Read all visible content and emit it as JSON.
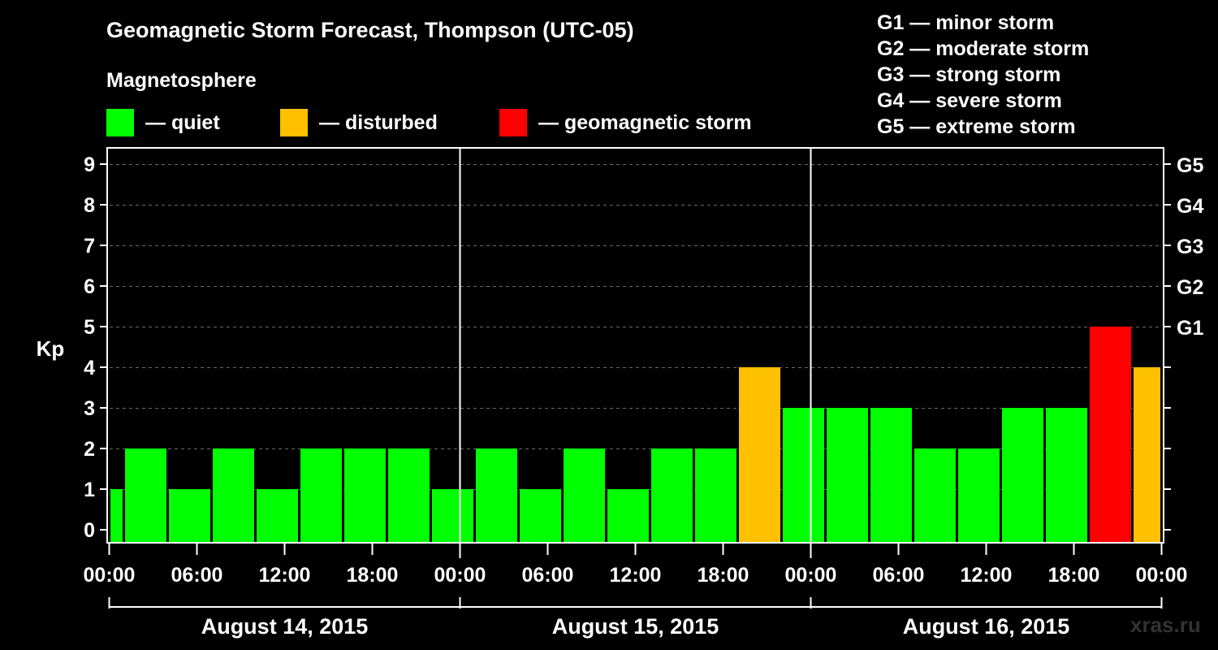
{
  "title": "Geomagnetic Storm Forecast, Thompson (UTC-05)",
  "section_label": "Magnetosphere",
  "legend": [
    {
      "label": "— quiet",
      "color": "#00ff00"
    },
    {
      "label": "— disturbed",
      "color": "#ffc000"
    },
    {
      "label": "— geomagnetic storm",
      "color": "#ff0000"
    }
  ],
  "storm_scale": [
    "G1 — minor storm",
    "G2 — moderate storm",
    "G3 — strong storm",
    "G4 — severe storm",
    "G5 — extreme storm"
  ],
  "watermark": "xras.ru",
  "chart_data": {
    "type": "bar",
    "title": "Geomagnetic Storm Forecast, Thompson (UTC-05)",
    "ylabel": "Kp",
    "ylim": [
      0,
      9
    ],
    "yticks": [
      "0",
      "1",
      "2",
      "3",
      "4",
      "5",
      "6",
      "7",
      "8",
      "9"
    ],
    "right_axis": [
      {
        "kp": 5,
        "label": "G1"
      },
      {
        "kp": 6,
        "label": "G2"
      },
      {
        "kp": 7,
        "label": "G3"
      },
      {
        "kp": 8,
        "label": "G4"
      },
      {
        "kp": 9,
        "label": "G5"
      }
    ],
    "xlim_hours": [
      0,
      72
    ],
    "xticks": [
      {
        "h": 0,
        "label": "00:00"
      },
      {
        "h": 6,
        "label": "06:00"
      },
      {
        "h": 12,
        "label": "12:00"
      },
      {
        "h": 18,
        "label": "18:00"
      },
      {
        "h": 24,
        "label": "00:00"
      },
      {
        "h": 30,
        "label": "06:00"
      },
      {
        "h": 36,
        "label": "12:00"
      },
      {
        "h": 42,
        "label": "18:00"
      },
      {
        "h": 48,
        "label": "00:00"
      },
      {
        "h": 54,
        "label": "06:00"
      },
      {
        "h": 60,
        "label": "12:00"
      },
      {
        "h": 66,
        "label": "18:00"
      },
      {
        "h": 72,
        "label": "00:00"
      }
    ],
    "days": [
      {
        "label": "August 14, 2015",
        "start": 0,
        "end": 24
      },
      {
        "label": "August 15, 2015",
        "start": 24,
        "end": 48
      },
      {
        "label": "August 16, 2015",
        "start": 48,
        "end": 72
      }
    ],
    "bars": [
      {
        "start": 0,
        "end": 1,
        "kp": 1,
        "status": "quiet"
      },
      {
        "start": 1,
        "end": 4,
        "kp": 2,
        "status": "quiet"
      },
      {
        "start": 4,
        "end": 7,
        "kp": 1,
        "status": "quiet"
      },
      {
        "start": 7,
        "end": 10,
        "kp": 2,
        "status": "quiet"
      },
      {
        "start": 10,
        "end": 13,
        "kp": 1,
        "status": "quiet"
      },
      {
        "start": 13,
        "end": 16,
        "kp": 2,
        "status": "quiet"
      },
      {
        "start": 16,
        "end": 19,
        "kp": 2,
        "status": "quiet"
      },
      {
        "start": 19,
        "end": 22,
        "kp": 2,
        "status": "quiet"
      },
      {
        "start": 22,
        "end": 25,
        "kp": 1,
        "status": "quiet"
      },
      {
        "start": 25,
        "end": 28,
        "kp": 2,
        "status": "quiet"
      },
      {
        "start": 28,
        "end": 31,
        "kp": 1,
        "status": "quiet"
      },
      {
        "start": 31,
        "end": 34,
        "kp": 2,
        "status": "quiet"
      },
      {
        "start": 34,
        "end": 37,
        "kp": 1,
        "status": "quiet"
      },
      {
        "start": 37,
        "end": 40,
        "kp": 2,
        "status": "quiet"
      },
      {
        "start": 40,
        "end": 43,
        "kp": 2,
        "status": "quiet"
      },
      {
        "start": 43,
        "end": 46,
        "kp": 4,
        "status": "disturbed"
      },
      {
        "start": 46,
        "end": 49,
        "kp": 3,
        "status": "quiet"
      },
      {
        "start": 49,
        "end": 52,
        "kp": 3,
        "status": "quiet"
      },
      {
        "start": 52,
        "end": 55,
        "kp": 3,
        "status": "quiet"
      },
      {
        "start": 55,
        "end": 58,
        "kp": 2,
        "status": "quiet"
      },
      {
        "start": 58,
        "end": 61,
        "kp": 2,
        "status": "quiet"
      },
      {
        "start": 61,
        "end": 64,
        "kp": 3,
        "status": "quiet"
      },
      {
        "start": 64,
        "end": 67,
        "kp": 3,
        "status": "quiet"
      },
      {
        "start": 67,
        "end": 70,
        "kp": 5,
        "status": "storm"
      },
      {
        "start": 70,
        "end": 72,
        "kp": 4,
        "status": "disturbed"
      }
    ],
    "status_colors": {
      "quiet": "#00ff00",
      "disturbed": "#ffc000",
      "storm": "#ff0000"
    }
  }
}
